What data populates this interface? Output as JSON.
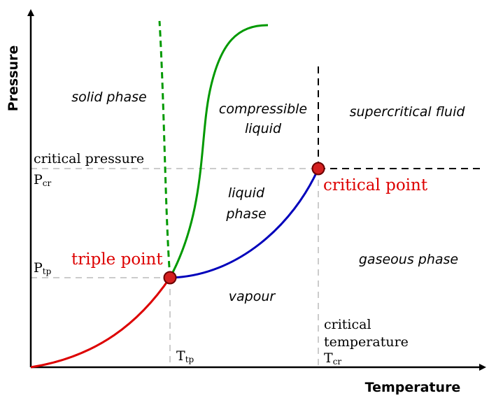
{
  "axes": {
    "y_label": "Pressure",
    "x_label": "Temperature"
  },
  "regions": {
    "solid": "solid phase",
    "compressible_1": "compressible",
    "compressible_2": "liquid",
    "supercritical": "supercritical fluid",
    "liquid_1": "liquid",
    "liquid_2": "phase",
    "gaseous": "gaseous phase",
    "vapour": "vapour"
  },
  "annotations": {
    "critical_pressure": "critical pressure",
    "p_cr_main": "P",
    "p_cr_sub": "cr",
    "p_tp_main": "P",
    "p_tp_sub": "tp",
    "t_tp_main": "T",
    "t_tp_sub": "tp",
    "critical_temperature_1": "critical",
    "critical_temperature_2": "temperature",
    "t_cr_main": "T",
    "t_cr_sub": "cr",
    "triple_point": "triple point",
    "critical_point": "critical point"
  },
  "colors": {
    "sublimation_curve": "#dd0000",
    "vaporization_curve": "#0000bb",
    "melting_curve": "#009900",
    "point_fill": "#d42020",
    "label_red": "#dd0000",
    "guide_dashes": "#cccccc"
  }
}
